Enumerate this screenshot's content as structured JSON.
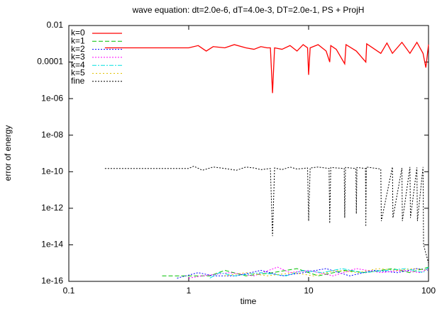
{
  "chart_data": {
    "type": "line",
    "title": "wave equation: dt=2.0e-6, dT=4.0e-3, DT=2.0e-1, PS + ProjH",
    "x_label": "time",
    "y_label": "error of energy",
    "x_log": true,
    "y_log": true,
    "grid": false,
    "legend": "top-left",
    "xlim": [
      0.1,
      100
    ],
    "xticks": [
      0.1,
      1,
      10,
      100
    ],
    "ylim": [
      1e-16,
      0.01
    ],
    "yticks": [
      {
        "value": 1e-16,
        "label": "1e-16"
      },
      {
        "value": 1e-14,
        "label": "1e-14"
      },
      {
        "value": 1e-12,
        "label": "1e-12"
      },
      {
        "value": 1e-10,
        "label": "1e-10"
      },
      {
        "value": 1e-08,
        "label": "1e-08"
      },
      {
        "value": 1e-06,
        "label": "1e-06"
      },
      0.0001,
      0.01
    ],
    "series": [
      {
        "name": "k=0",
        "color": "#ff0000",
        "dash": "none",
        "x": [
          0.2,
          0.5,
          1,
          1.2,
          1.4,
          1.6,
          2,
          2.4,
          3,
          3.5,
          4,
          4.5,
          4.8,
          5,
          5.2,
          6,
          7,
          8,
          9,
          9.8,
          10,
          10.3,
          12,
          14,
          15,
          15.3,
          17,
          20,
          20.5,
          25,
          30,
          30.5,
          40,
          45,
          50,
          60,
          70,
          80,
          90,
          95,
          100
        ],
        "values": [
          0.0006,
          0.0006,
          0.0006,
          0.0008,
          0.0004,
          0.0007,
          0.0006,
          0.0009,
          0.0006,
          0.0005,
          0.0007,
          0.0006,
          0.0006,
          2e-06,
          0.0006,
          0.0005,
          0.0008,
          0.0004,
          0.0009,
          0.0006,
          2e-05,
          0.0006,
          0.0009,
          0.0004,
          0.0001,
          0.0008,
          0.0005,
          8e-05,
          0.0009,
          0.0004,
          0.0001,
          0.001,
          0.0003,
          0.0011,
          0.0003,
          0.0012,
          0.0003,
          0.0012,
          0.0003,
          5e-05,
          0.0009
        ]
      },
      {
        "name": "k=1",
        "color": "#00c000",
        "dash": "6,3",
        "x": [
          0.6,
          1,
          1.5,
          2,
          3,
          5,
          8,
          12,
          20,
          30,
          50,
          70,
          100
        ],
        "values": [
          2e-16,
          2e-16,
          2e-16,
          4e-16,
          2e-16,
          3e-16,
          5e-16,
          2e-16,
          4e-16,
          3e-16,
          5e-16,
          3e-16,
          6e-16
        ]
      },
      {
        "name": "k=2",
        "color": "#0000ff",
        "dash": "2,2",
        "x": [
          0.8,
          1.2,
          1.6,
          2.5,
          4,
          6,
          9,
          14,
          22,
          35,
          55,
          80,
          100
        ],
        "values": [
          1.5e-16,
          3e-16,
          2e-16,
          2e-16,
          4e-16,
          2e-16,
          3e-16,
          5e-16,
          2e-16,
          4e-16,
          3e-16,
          5e-16,
          4e-16
        ]
      },
      {
        "name": "k=3",
        "color": "#ff00ff",
        "dash": "2,2",
        "x": [
          1,
          1.3,
          2.2,
          3.5,
          5.5,
          7,
          10,
          16,
          25,
          40,
          60,
          85,
          100
        ],
        "values": [
          1.5e-16,
          2e-16,
          3e-16,
          2e-16,
          6e-16,
          3e-16,
          4e-16,
          2e-16,
          5e-16,
          3e-16,
          4e-16,
          3e-16,
          5e-16
        ]
      },
      {
        "name": "k=4",
        "color": "#00e0e0",
        "dash": "6,2,2,2",
        "x": [
          1.5,
          1.8,
          2.4,
          4,
          6.5,
          9,
          13,
          19,
          28,
          45,
          65,
          90,
          100
        ],
        "values": [
          1.5e-16,
          3e-16,
          2e-16,
          3e-16,
          2e-16,
          4e-16,
          3e-16,
          5e-16,
          3e-16,
          4e-16,
          5e-16,
          3e-16,
          6e-16
        ]
      },
      {
        "name": "k=5",
        "color": "#e0c000",
        "dash": "2,3",
        "x": [
          2,
          3,
          4.5,
          7.5,
          11,
          17,
          26,
          38,
          55,
          75,
          100
        ],
        "values": [
          2e-16,
          3e-16,
          2e-16,
          3e-16,
          2e-16,
          4e-16,
          3e-16,
          5e-16,
          4e-16,
          5e-16,
          4e-16
        ]
      },
      {
        "name": "fine",
        "color": "#000000",
        "dash": "2,2",
        "x": [
          0.2,
          0.5,
          1,
          1.1,
          1.3,
          1.6,
          2,
          2.5,
          3,
          3.5,
          4,
          4.8,
          5,
          5.2,
          6,
          7,
          8,
          9.8,
          10,
          10.3,
          12,
          14.8,
          15,
          15.3,
          19.8,
          20,
          20.3,
          24.8,
          25,
          25.3,
          29.8,
          30,
          30.3,
          40,
          40.4,
          50,
          50.5,
          60,
          60.5,
          70,
          70.7,
          80,
          80.8,
          90,
          90.9,
          100
        ],
        "values": [
          1.5e-10,
          1.5e-10,
          1.5e-10,
          2e-10,
          1.2e-10,
          1.8e-10,
          1.5e-10,
          1.2e-10,
          1.8e-10,
          1.6e-10,
          1.3e-10,
          1.5e-10,
          3e-14,
          1.6e-10,
          1.3e-10,
          1.8e-10,
          1.4e-10,
          1.6e-10,
          2e-13,
          1.6e-10,
          1.8e-10,
          1.5e-10,
          1.5e-13,
          1.7e-10,
          1.5e-10,
          3e-13,
          1.7e-10,
          1.5e-10,
          5e-13,
          1.7e-10,
          1.5e-10,
          1e-13,
          1.8e-10,
          1.4e-10,
          2e-13,
          1.8e-10,
          3e-13,
          1.6e-10,
          2e-13,
          1.8e-10,
          3e-13,
          1.7e-10,
          2e-13,
          1.8e-10,
          1e-14,
          1e-15
        ]
      }
    ]
  }
}
